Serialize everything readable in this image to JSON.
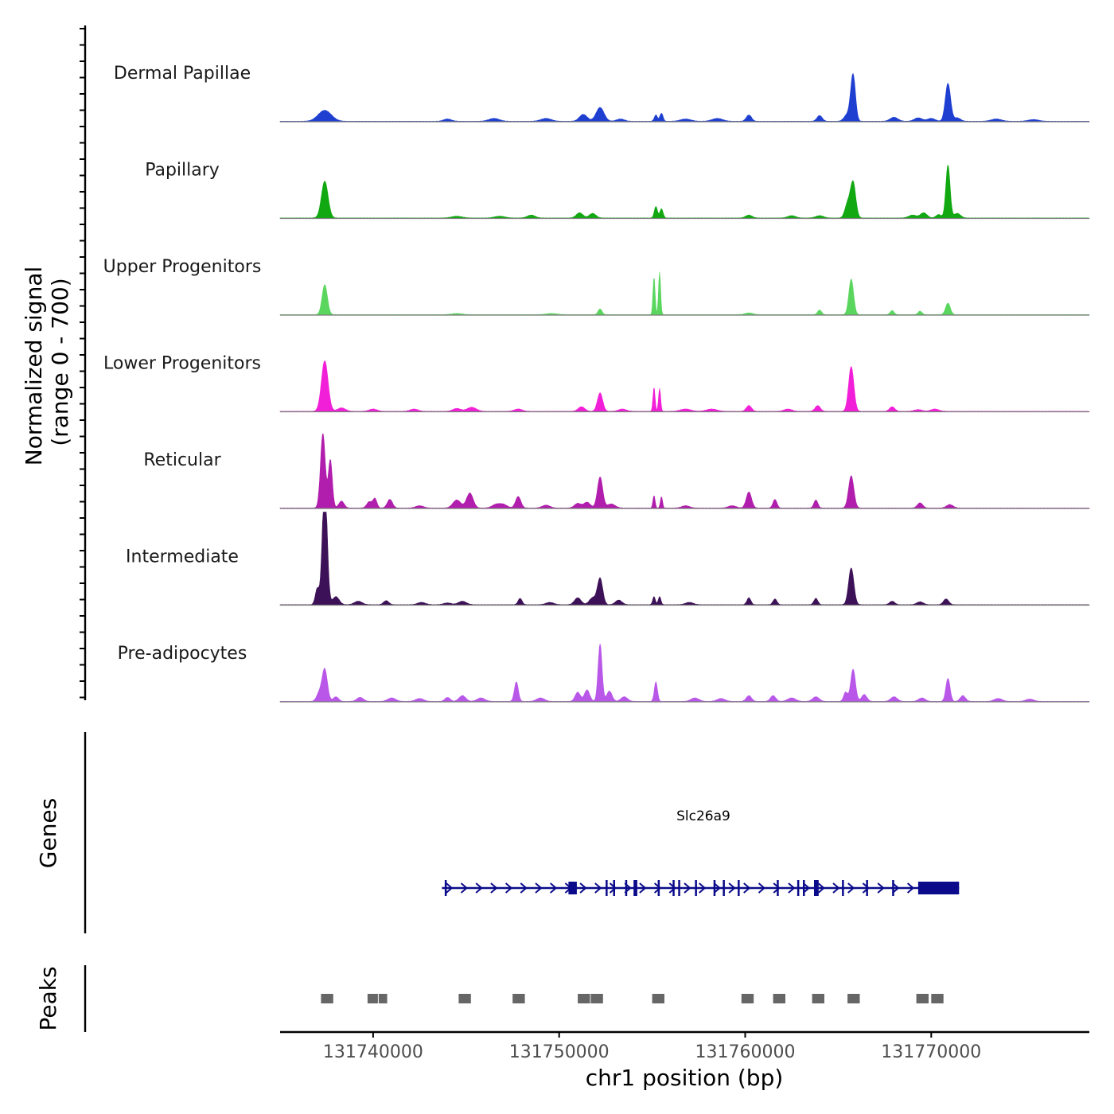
{
  "chart_data": {
    "type": "area",
    "title": "",
    "ylabel_line1": "Normalized signal",
    "ylabel_line2": "(range 0 - 700)",
    "genes_label": "Genes",
    "peaks_label": "Peaks",
    "xlabel": "chr1 position (bp)",
    "xlim": [
      131735000,
      131778500
    ],
    "ylim": [
      0,
      700
    ],
    "x_ticks": [
      {
        "value": 131740000,
        "label": "131740000"
      },
      {
        "value": 131750000,
        "label": "131750000"
      },
      {
        "value": 131760000,
        "label": "131760000"
      },
      {
        "value": 131770000,
        "label": "131770000"
      }
    ],
    "tracks": [
      {
        "name": "Dermal Papillae",
        "color": "#1f3fd1",
        "peaks": [
          [
            131737400,
            95,
            500
          ],
          [
            131744000,
            20,
            300
          ],
          [
            131746500,
            25,
            400
          ],
          [
            131749300,
            25,
            400
          ],
          [
            131751300,
            60,
            300
          ],
          [
            131752200,
            120,
            300
          ],
          [
            131753300,
            20,
            300
          ],
          [
            131755200,
            55,
            120
          ],
          [
            131755500,
            70,
            120
          ],
          [
            131756800,
            20,
            400
          ],
          [
            131758500,
            25,
            400
          ],
          [
            131760200,
            55,
            200
          ],
          [
            131764000,
            50,
            200
          ],
          [
            131765500,
            60,
            250
          ],
          [
            131765800,
            400,
            180
          ],
          [
            131768000,
            35,
            300
          ],
          [
            131769300,
            30,
            300
          ],
          [
            131770000,
            25,
            300
          ],
          [
            131770900,
            330,
            200
          ],
          [
            131771400,
            30,
            250
          ],
          [
            131773500,
            20,
            400
          ],
          [
            131775500,
            15,
            400
          ]
        ]
      },
      {
        "name": "Papillary",
        "color": "#11a811",
        "peaks": [
          [
            131737400,
            320,
            250
          ],
          [
            131744500,
            15,
            400
          ],
          [
            131746800,
            15,
            400
          ],
          [
            131748500,
            25,
            300
          ],
          [
            131751100,
            45,
            250
          ],
          [
            131751800,
            40,
            250
          ],
          [
            131755200,
            100,
            120
          ],
          [
            131755500,
            80,
            120
          ],
          [
            131760200,
            25,
            250
          ],
          [
            131762500,
            20,
            300
          ],
          [
            131764000,
            20,
            300
          ],
          [
            131765500,
            120,
            200
          ],
          [
            131765800,
            310,
            200
          ],
          [
            131769000,
            25,
            300
          ],
          [
            131769600,
            45,
            250
          ],
          [
            131770400,
            30,
            200
          ],
          [
            131770900,
            460,
            160
          ],
          [
            131771400,
            40,
            250
          ]
        ]
      },
      {
        "name": "Upper Progenitors",
        "color": "#5ad65f",
        "peaks": [
          [
            131737400,
            260,
            200
          ],
          [
            131744500,
            10,
            400
          ],
          [
            131749600,
            10,
            400
          ],
          [
            131752200,
            50,
            150
          ],
          [
            131755100,
            330,
            80
          ],
          [
            131755400,
            370,
            80
          ],
          [
            131760200,
            15,
            300
          ],
          [
            131764000,
            40,
            150
          ],
          [
            131765700,
            310,
            180
          ],
          [
            131767900,
            35,
            150
          ],
          [
            131769400,
            30,
            150
          ],
          [
            131770900,
            100,
            180
          ]
        ]
      },
      {
        "name": "Lower Progenitors",
        "color": "#f21fd8",
        "peaks": [
          [
            131737400,
            440,
            250
          ],
          [
            131738300,
            30,
            300
          ],
          [
            131740000,
            20,
            300
          ],
          [
            131742200,
            20,
            300
          ],
          [
            131744500,
            25,
            300
          ],
          [
            131745300,
            35,
            350
          ],
          [
            131747800,
            20,
            300
          ],
          [
            131751200,
            40,
            250
          ],
          [
            131752200,
            160,
            200
          ],
          [
            131753400,
            20,
            300
          ],
          [
            131755100,
            210,
            80
          ],
          [
            131755400,
            200,
            80
          ],
          [
            131756800,
            20,
            400
          ],
          [
            131758200,
            20,
            400
          ],
          [
            131760200,
            50,
            200
          ],
          [
            131762300,
            20,
            300
          ],
          [
            131763900,
            50,
            200
          ],
          [
            131765700,
            390,
            200
          ],
          [
            131767900,
            40,
            200
          ],
          [
            131769300,
            15,
            300
          ],
          [
            131770200,
            20,
            300
          ]
        ]
      },
      {
        "name": "Reticular",
        "color": "#b11dad",
        "peaks": [
          [
            131737300,
            650,
            180
          ],
          [
            131737700,
            420,
            150
          ],
          [
            131738300,
            60,
            200
          ],
          [
            131739800,
            55,
            200
          ],
          [
            131740100,
            80,
            150
          ],
          [
            131740900,
            75,
            200
          ],
          [
            131742500,
            20,
            300
          ],
          [
            131744500,
            70,
            300
          ],
          [
            131745200,
            130,
            250
          ],
          [
            131746600,
            30,
            300
          ],
          [
            131747000,
            30,
            300
          ],
          [
            131747800,
            100,
            200
          ],
          [
            131749300,
            25,
            300
          ],
          [
            131751000,
            40,
            250
          ],
          [
            131751500,
            50,
            250
          ],
          [
            131752200,
            270,
            200
          ],
          [
            131752800,
            35,
            300
          ],
          [
            131755100,
            110,
            80
          ],
          [
            131755500,
            100,
            80
          ],
          [
            131756800,
            20,
            300
          ],
          [
            131759300,
            20,
            300
          ],
          [
            131760200,
            140,
            200
          ],
          [
            131761600,
            75,
            150
          ],
          [
            131763800,
            70,
            150
          ],
          [
            131765700,
            280,
            200
          ],
          [
            131769400,
            45,
            200
          ],
          [
            131771000,
            30,
            250
          ]
        ]
      },
      {
        "name": "Intermediate",
        "color": "#3d1157",
        "peaks": [
          [
            131737000,
            140,
            150
          ],
          [
            131737400,
            1100,
            180
          ],
          [
            131738000,
            70,
            250
          ],
          [
            131739200,
            30,
            300
          ],
          [
            131740700,
            35,
            200
          ],
          [
            131742600,
            20,
            300
          ],
          [
            131744000,
            15,
            300
          ],
          [
            131744800,
            30,
            300
          ],
          [
            131747900,
            55,
            150
          ],
          [
            131749500,
            20,
            300
          ],
          [
            131751000,
            60,
            250
          ],
          [
            131751800,
            60,
            250
          ],
          [
            131752200,
            230,
            200
          ],
          [
            131753200,
            40,
            250
          ],
          [
            131755100,
            70,
            100
          ],
          [
            131755400,
            70,
            100
          ],
          [
            131757000,
            20,
            300
          ],
          [
            131760200,
            60,
            150
          ],
          [
            131761600,
            50,
            150
          ],
          [
            131763800,
            55,
            150
          ],
          [
            131765700,
            320,
            200
          ],
          [
            131767900,
            30,
            200
          ],
          [
            131769400,
            25,
            250
          ],
          [
            131770800,
            50,
            200
          ]
        ]
      },
      {
        "name": "Pre-adipocytes",
        "color": "#b857e8",
        "peaks": [
          [
            131737400,
            280,
            200
          ],
          [
            131737100,
            70,
            200
          ],
          [
            131738000,
            40,
            200
          ],
          [
            131739300,
            35,
            250
          ],
          [
            131741000,
            30,
            300
          ],
          [
            131742500,
            25,
            300
          ],
          [
            131744000,
            35,
            200
          ],
          [
            131744800,
            50,
            250
          ],
          [
            131745800,
            30,
            300
          ],
          [
            131747700,
            170,
            150
          ],
          [
            131749000,
            30,
            300
          ],
          [
            131751000,
            80,
            200
          ],
          [
            131751500,
            100,
            200
          ],
          [
            131752200,
            500,
            150
          ],
          [
            131752700,
            90,
            200
          ],
          [
            131753500,
            40,
            250
          ],
          [
            131755200,
            170,
            120
          ],
          [
            131757300,
            30,
            300
          ],
          [
            131758700,
            25,
            300
          ],
          [
            131760200,
            50,
            200
          ],
          [
            131761500,
            50,
            200
          ],
          [
            131762500,
            30,
            300
          ],
          [
            131763800,
            40,
            250
          ],
          [
            131765400,
            80,
            150
          ],
          [
            131765800,
            280,
            180
          ],
          [
            131766400,
            60,
            200
          ],
          [
            131768000,
            40,
            250
          ],
          [
            131769500,
            30,
            250
          ],
          [
            131770900,
            200,
            160
          ],
          [
            131771700,
            50,
            200
          ],
          [
            131773600,
            25,
            300
          ],
          [
            131775300,
            20,
            300
          ]
        ]
      }
    ],
    "gene": {
      "name": "Slc26a9",
      "strand": "+",
      "start": 131743700,
      "end": 131771500,
      "color": "#0a0a8a",
      "exons": [
        [
          131743850,
          131743950
        ],
        [
          131750500,
          131750950
        ],
        [
          131752500,
          131752600
        ],
        [
          131752900,
          131753000
        ],
        [
          131753550,
          131753650
        ],
        [
          131754000,
          131754200
        ],
        [
          131755300,
          131755400
        ],
        [
          131756100,
          131756200
        ],
        [
          131756400,
          131756500
        ],
        [
          131757300,
          131757400
        ],
        [
          131758300,
          131758400
        ],
        [
          131758800,
          131758900
        ],
        [
          131759600,
          131759700
        ],
        [
          131761700,
          131761800
        ],
        [
          131762800,
          131762900
        ],
        [
          131763100,
          131763200
        ],
        [
          131763700,
          131763950
        ],
        [
          131765200,
          131765300
        ],
        [
          131766500,
          131766600
        ],
        [
          131767900,
          131768000
        ],
        [
          131769300,
          131771500
        ]
      ]
    },
    "peaks_regions": [
      [
        131737200,
        131737900
      ],
      [
        131739700,
        131740300
      ],
      [
        131740300,
        131740800
      ],
      [
        131744600,
        131745300
      ],
      [
        131747500,
        131748200
      ],
      [
        131751000,
        131751700
      ],
      [
        131751700,
        131752400
      ],
      [
        131755000,
        131755700
      ],
      [
        131759800,
        131760500
      ],
      [
        131761500,
        131762200
      ],
      [
        131763600,
        131764300
      ],
      [
        131765500,
        131766200
      ],
      [
        131769200,
        131769900
      ],
      [
        131770000,
        131770700
      ]
    ]
  }
}
